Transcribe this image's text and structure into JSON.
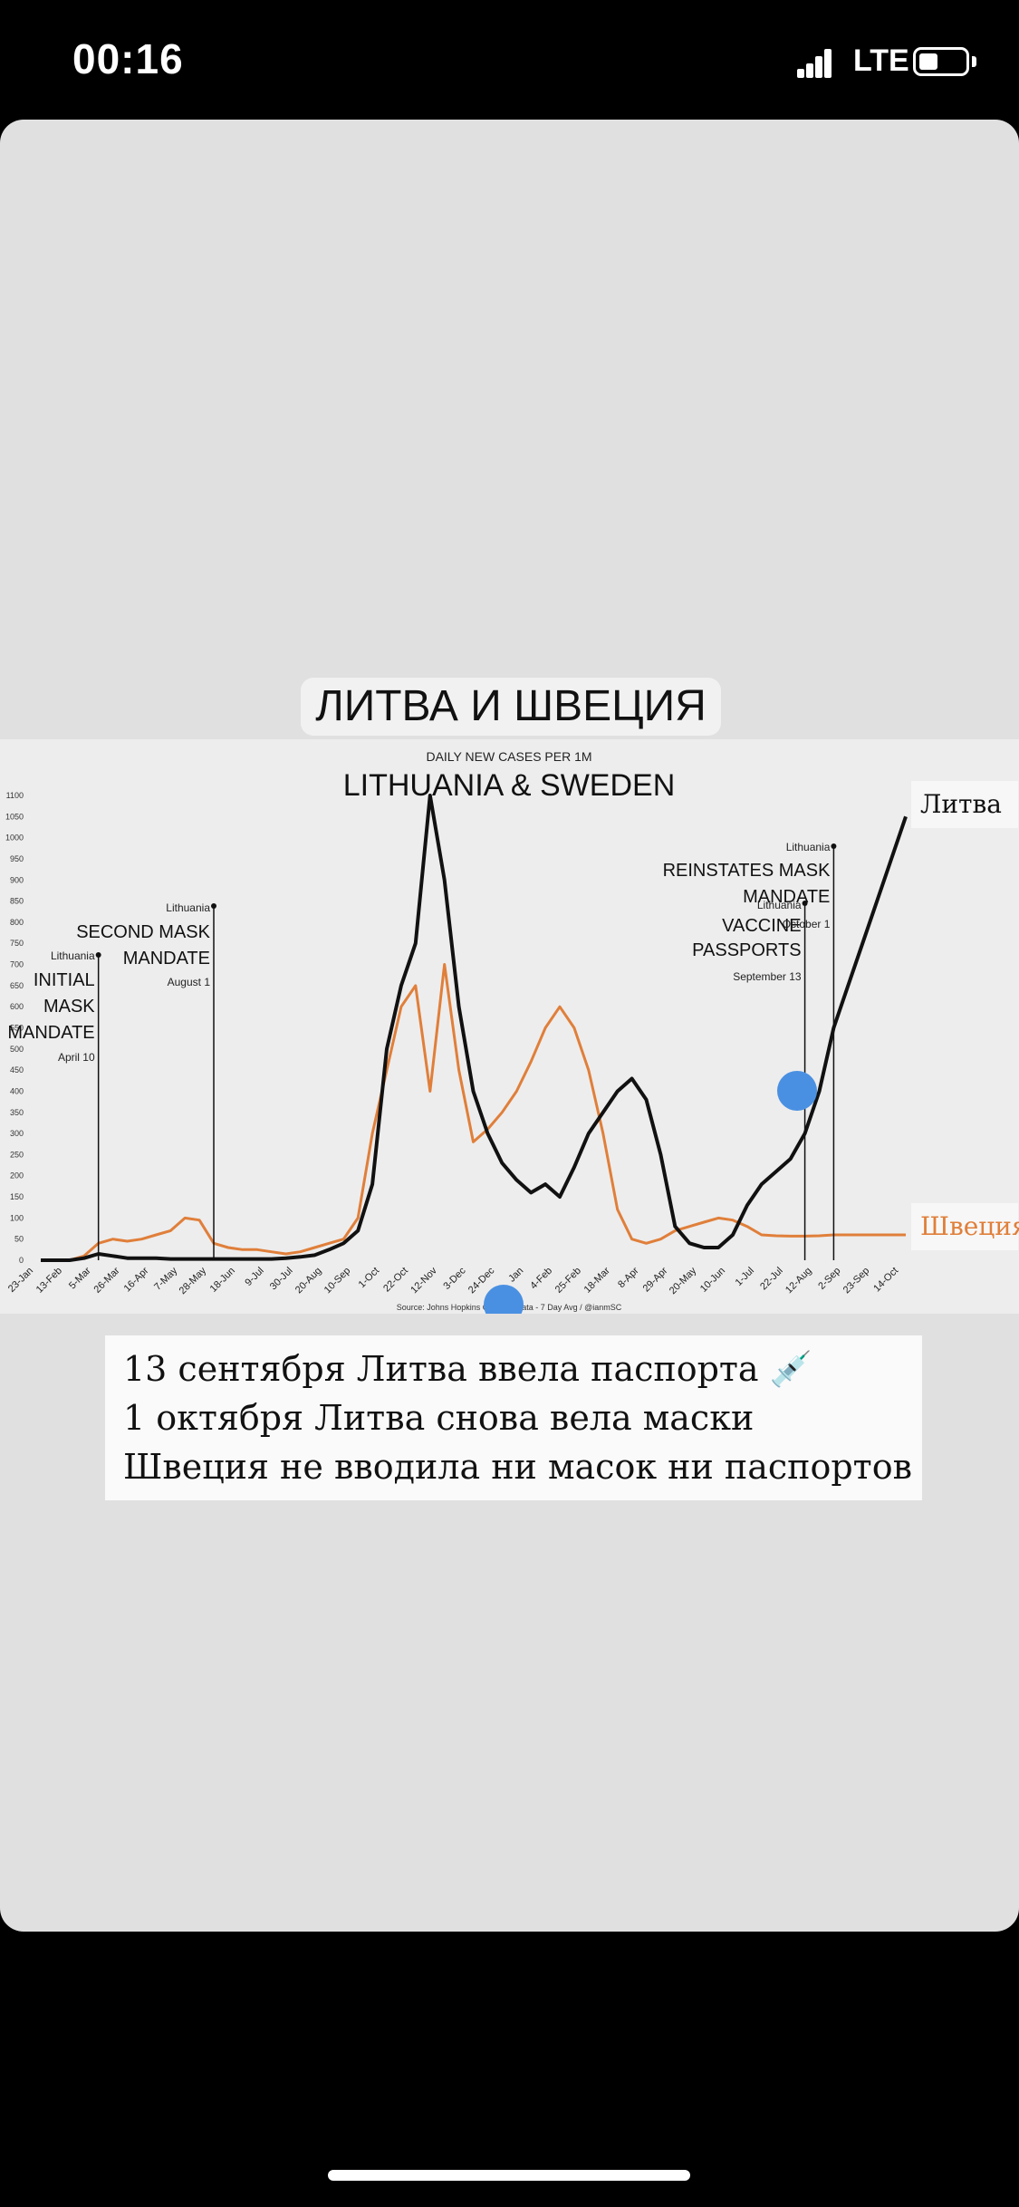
{
  "status_bar": {
    "time": "00:16",
    "network": "LTE"
  },
  "story": {
    "headline": "ЛИТВА И ШВЕЦИЯ",
    "caption_lines": [
      "13 сентября Литва ввела паспорта 💉",
      "1 октября Литва снова вела маски",
      "Швеция не вводила ни масок ни паспортов"
    ],
    "series_labels": {
      "lithuania": "Литва",
      "sweden": "Швеция"
    }
  },
  "colors": {
    "lithuania": "#111111",
    "sweden": "#e07f3a",
    "touch_marker": "#4a90e2"
  },
  "chart_data": {
    "type": "line",
    "subtitle": "DAILY NEW CASES PER 1M",
    "title": "LITHUANIA & SWEDEN",
    "source": "Source: Johns Hopkins CSSE ... Data - 7 Day Avg / @ianmSC",
    "ylim": [
      0,
      1100
    ],
    "yticks": [
      0,
      50,
      100,
      150,
      200,
      250,
      300,
      350,
      400,
      450,
      500,
      550,
      600,
      650,
      700,
      750,
      800,
      850,
      900,
      950,
      1000,
      1050,
      1100
    ],
    "x_tick_labels": [
      "23-Jan",
      "13-Feb",
      "5-Mar",
      "26-Mar",
      "16-Apr",
      "7-May",
      "28-May",
      "18-Jun",
      "9-Jul",
      "30-Jul",
      "20-Aug",
      "10-Sep",
      "1-Oct",
      "22-Oct",
      "12-Nov",
      "3-Dec",
      "24-Dec",
      "14-Jan",
      "4-Feb",
      "25-Feb",
      "18-Mar",
      "8-Apr",
      "29-Apr",
      "20-May",
      "10-Jun",
      "1-Jul",
      "22-Jul",
      "12-Aug",
      "2-Sep",
      "23-Sep",
      "14-Oct"
    ],
    "x_visible_tick_labels": [
      "23-Jan",
      "13-Feb",
      "5-Mar",
      "26-Mar",
      "16-Apr",
      "7-May",
      "28-May",
      "18-Jun",
      "9-Jul",
      "30-Jul",
      "20-Aug",
      "10-Sep",
      "1-Oct",
      "22-Oct",
      "12-Nov",
      "3-Dec",
      "24-Dec",
      "Jan",
      "4-Feb",
      "25-Feb",
      "18-Mar",
      "8-Apr",
      "29-Apr",
      "20-May",
      "10-Jun",
      "1-Jul",
      "22-Jul",
      "12-Aug",
      "2-Sep",
      "23-Sep",
      "14-Oct"
    ],
    "x": [
      0,
      1,
      2,
      3,
      4,
      5,
      6,
      7,
      8,
      9,
      10,
      11,
      12,
      13,
      14,
      15,
      16,
      17,
      18,
      19,
      20,
      21,
      22,
      23,
      24,
      25,
      26,
      27,
      28,
      29,
      30,
      31,
      32,
      33,
      34,
      35,
      36,
      37,
      38,
      39,
      40,
      41,
      42,
      43,
      44,
      45,
      46,
      47,
      48,
      49,
      50,
      51,
      52,
      53,
      54,
      55,
      56,
      57,
      58,
      59,
      60
    ],
    "series": [
      {
        "name": "Lithuania",
        "key": "lithuania",
        "values": [
          0,
          0,
          0,
          5,
          15,
          10,
          5,
          5,
          5,
          3,
          3,
          3,
          3,
          3,
          3,
          3,
          3,
          5,
          8,
          12,
          25,
          40,
          70,
          180,
          500,
          650,
          750,
          1100,
          900,
          600,
          400,
          300,
          230,
          190,
          160,
          180,
          150,
          220,
          300,
          350,
          400,
          430,
          380,
          250,
          80,
          40,
          30,
          30,
          60,
          130,
          180,
          210,
          240,
          300,
          400,
          550,
          650,
          750,
          850,
          950,
          1050
        ]
      },
      {
        "name": "Sweden",
        "key": "sweden",
        "values": [
          0,
          0,
          0,
          10,
          40,
          50,
          45,
          50,
          60,
          70,
          100,
          95,
          40,
          30,
          25,
          25,
          20,
          15,
          20,
          30,
          40,
          50,
          100,
          300,
          450,
          600,
          650,
          400,
          700,
          450,
          280,
          310,
          350,
          400,
          470,
          550,
          600,
          550,
          450,
          300,
          120,
          50,
          40,
          50,
          70,
          80,
          90,
          100,
          95,
          80,
          60,
          58,
          57,
          57,
          58,
          60,
          60,
          60,
          60,
          60,
          60
        ]
      }
    ],
    "annotations": [
      {
        "region": "Lithuania",
        "label": "INITIAL MASK MANDATE",
        "date": "April 10",
        "x": 4
      },
      {
        "region": "Lithuania",
        "label": "SECOND MASK MANDATE",
        "date": "August 1",
        "x": 12
      },
      {
        "region": "Lithuania",
        "label": "VACCINE PASSPORTS",
        "date": "September 13",
        "x": 53
      },
      {
        "region": "Lithuania",
        "label": "REINSTATES MASK MANDATE",
        "date": "October 1",
        "x": 55
      }
    ]
  }
}
